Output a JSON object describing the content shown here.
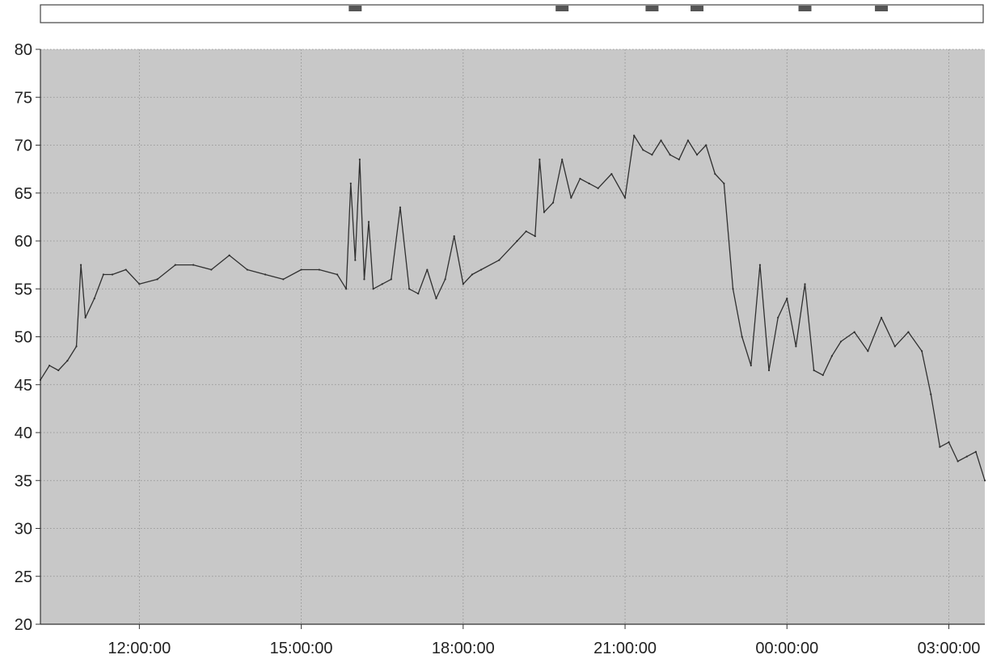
{
  "chart_data": {
    "type": "line",
    "title": "",
    "xlabel": "",
    "ylabel": "",
    "ylim": [
      20,
      80
    ],
    "yticks": [
      "20",
      "25",
      "30",
      "35",
      "40",
      "45",
      "50",
      "55",
      "60",
      "65",
      "70",
      "75",
      "80"
    ],
    "xlim": [
      "10:10:00",
      "03:40:00"
    ],
    "xticks": [
      "12:00:00",
      "15:00:00",
      "18:00:00",
      "21:00:00",
      "00:00:00",
      "03:00:00"
    ],
    "grid": true,
    "legend": "none",
    "colors": {
      "plot_bg": "#c8c8c8",
      "line": "#303030",
      "grid": "#8c8c8c",
      "marker_bar": "#555555"
    },
    "overview_markers": [
      "16:00:00",
      "19:50:00",
      "21:30:00",
      "22:20:00",
      "00:20:00",
      "01:45:00"
    ],
    "series": [
      {
        "x": [
          "10:10:00",
          "10:20:00",
          "10:30:00",
          "10:40:00",
          "10:50:00",
          "10:55:00",
          "11:00:00",
          "11:10:00",
          "11:20:00",
          "11:30:00",
          "11:45:00",
          "12:00:00",
          "12:20:00",
          "12:40:00",
          "13:00:00",
          "13:20:00",
          "13:40:00",
          "14:00:00",
          "14:20:00",
          "14:40:00",
          "15:00:00",
          "15:20:00",
          "15:40:00",
          "15:50:00",
          "15:55:00",
          "16:00:00",
          "16:05:00",
          "16:10:00",
          "16:15:00",
          "16:20:00",
          "16:30:00",
          "16:40:00",
          "16:50:00",
          "17:00:00",
          "17:10:00",
          "17:20:00",
          "17:30:00",
          "17:40:00",
          "17:50:00",
          "18:00:00",
          "18:10:00",
          "18:20:00",
          "18:40:00",
          "19:00:00",
          "19:10:00",
          "19:20:00",
          "19:25:00",
          "19:30:00",
          "19:40:00",
          "19:50:00",
          "20:00:00",
          "20:10:00",
          "20:20:00",
          "20:30:00",
          "20:45:00",
          "21:00:00",
          "21:10:00",
          "21:20:00",
          "21:30:00",
          "21:40:00",
          "21:50:00",
          "22:00:00",
          "22:10:00",
          "22:20:00",
          "22:30:00",
          "22:40:00",
          "22:50:00",
          "23:00:00",
          "23:10:00",
          "23:20:00",
          "23:30:00",
          "23:40:00",
          "23:50:00",
          "00:00:00",
          "00:10:00",
          "00:20:00",
          "00:30:00",
          "00:40:00",
          "00:50:00",
          "01:00:00",
          "01:15:00",
          "01:30:00",
          "01:45:00",
          "02:00:00",
          "02:15:00",
          "02:30:00",
          "02:40:00",
          "02:50:00",
          "03:00:00",
          "03:10:00",
          "03:20:00",
          "03:30:00",
          "03:40:00"
        ],
        "y": [
          45.5,
          47.0,
          46.5,
          47.5,
          49.0,
          57.5,
          52.0,
          54.0,
          56.5,
          56.5,
          57.0,
          55.5,
          56.0,
          57.5,
          57.5,
          57.0,
          58.5,
          57.0,
          56.5,
          56.0,
          57.0,
          57.0,
          56.5,
          55.0,
          66.0,
          58.0,
          68.5,
          56.0,
          62.0,
          55.0,
          55.5,
          56.0,
          63.5,
          55.0,
          54.5,
          57.0,
          54.0,
          56.0,
          60.5,
          55.5,
          56.5,
          57.0,
          58.0,
          60.0,
          61.0,
          60.5,
          68.5,
          63.0,
          64.0,
          68.5,
          64.5,
          66.5,
          66.0,
          65.5,
          67.0,
          64.5,
          71.0,
          69.5,
          69.0,
          70.5,
          69.0,
          68.5,
          70.5,
          69.0,
          70.0,
          67.0,
          66.0,
          55.0,
          50.0,
          47.0,
          57.5,
          46.5,
          52.0,
          54.0,
          49.0,
          55.5,
          46.5,
          46.0,
          48.0,
          49.5,
          50.5,
          48.5,
          52.0,
          49.0,
          50.5,
          48.5,
          44.0,
          38.5,
          39.0,
          37.0,
          37.5,
          38.0,
          35.0
        ]
      }
    ]
  }
}
